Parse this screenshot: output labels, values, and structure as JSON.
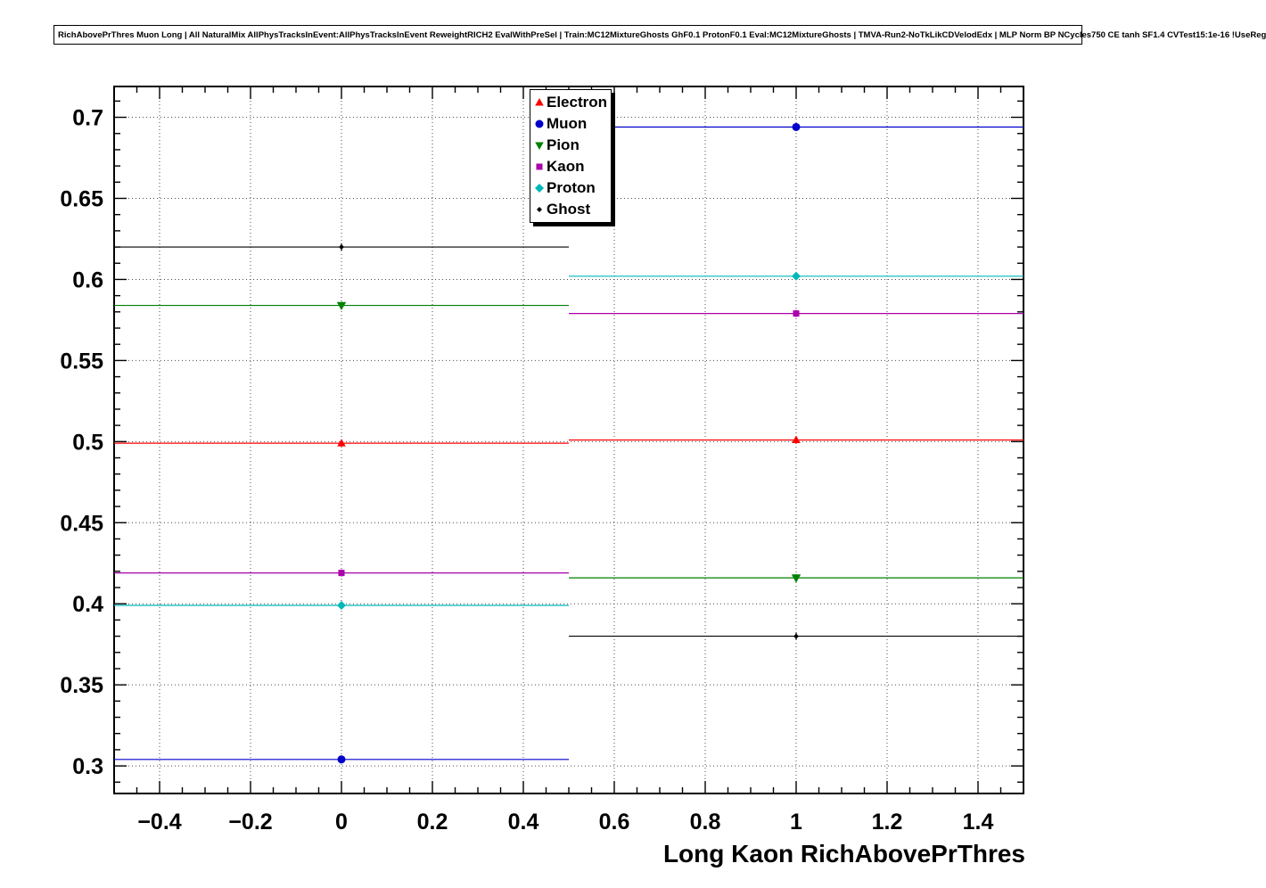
{
  "window": {
    "title_pave": "RichAbovePrThres Muon Long | All NaturalMix AllPhysTracksInEvent:AllPhysTracksInEvent ReweightRICH2 EvalWithPreSel | Train:MC12MixtureGhosts GhF0.1 ProtonF0.1 Eval:MC12MixtureGhosts | TMVA-Run2-NoTkLikCDVelodEdx | MLP Norm BP NCycles750 CE tanh SF1.4 CVTest15:1e-16 !UseReg"
  },
  "chart_data": {
    "type": "scatter",
    "title": "RichAbovePrThres Muon Long | All NaturalMix AllPhysTracksInEvent:AllPhysTracksInEvent ReweightRICH2 EvalWithPreSel | Train:MC12MixtureGhosts GhF0.1 ProtonF0.1 Eval:MC12MixtureGhosts | TMVA-Run2-NoTkLikCDVelodEdx | MLP Norm BP NCycles750 CE tanh SF1.4 CVTest15:1e-16 !UseReg",
    "xlabel": "Long Kaon RichAbovePrThres",
    "ylabel": "",
    "xlim": [
      -0.5,
      1.5
    ],
    "ylim": [
      0.283,
      0.719
    ],
    "grid": true,
    "legend_position": "top-center",
    "x_ticks": [
      -0.4,
      -0.2,
      0,
      0.2,
      0.4,
      0.6,
      0.8,
      1,
      1.2,
      1.4
    ],
    "x_tick_labels": [
      "−0.4",
      "−0.2",
      "0",
      "0.2",
      "0.4",
      "0.6",
      "0.8",
      "1",
      "1.2",
      "1.4"
    ],
    "x_minor_step": 0.05,
    "y_ticks": [
      0.3,
      0.35,
      0.4,
      0.45,
      0.5,
      0.55,
      0.6,
      0.65,
      0.7
    ],
    "y_tick_labels": [
      "0.3",
      "0.35",
      "0.4",
      "0.45",
      "0.5",
      "0.55",
      "0.6",
      "0.65",
      "0.7"
    ],
    "y_minor_step": 0.01,
    "series": [
      {
        "name": "Electron",
        "color": "#ff0000",
        "marker": "triangle-up",
        "marker_size": 5,
        "points": [
          {
            "x": 0,
            "xlow": -0.5,
            "xhigh": 0.5,
            "y": 0.499
          },
          {
            "x": 1,
            "xlow": 0.5,
            "xhigh": 1.5,
            "y": 0.501
          }
        ]
      },
      {
        "name": "Muon",
        "color": "#0000cc",
        "marker": "circle",
        "marker_size": 5,
        "points": [
          {
            "x": 0,
            "xlow": -0.5,
            "xhigh": 0.5,
            "y": 0.304
          },
          {
            "x": 1,
            "xlow": 0.5,
            "xhigh": 1.5,
            "y": 0.694
          }
        ]
      },
      {
        "name": "Pion",
        "color": "#008000",
        "marker": "triangle-down",
        "marker_size": 5.5,
        "points": [
          {
            "x": 0,
            "xlow": -0.5,
            "xhigh": 0.5,
            "y": 0.584
          },
          {
            "x": 1,
            "xlow": 0.5,
            "xhigh": 1.5,
            "y": 0.416
          }
        ]
      },
      {
        "name": "Kaon",
        "color": "#aa00aa",
        "marker": "square",
        "marker_size": 4.5,
        "points": [
          {
            "x": 0,
            "xlow": -0.5,
            "xhigh": 0.5,
            "y": 0.419
          },
          {
            "x": 1,
            "xlow": 0.5,
            "xhigh": 1.5,
            "y": 0.579
          }
        ]
      },
      {
        "name": "Proton",
        "color": "#00b8b8",
        "marker": "diamond",
        "marker_size": 5,
        "points": [
          {
            "x": 0,
            "xlow": -0.5,
            "xhigh": 0.5,
            "y": 0.399
          },
          {
            "x": 1,
            "xlow": 0.5,
            "xhigh": 1.5,
            "y": 0.602
          }
        ]
      },
      {
        "name": "Ghost",
        "color": "#000000",
        "marker": "diamond",
        "marker_size": 3,
        "points": [
          {
            "x": 0,
            "xlow": -0.5,
            "xhigh": 0.5,
            "y": 0.62
          },
          {
            "x": 1,
            "xlow": 0.5,
            "xhigh": 1.5,
            "y": 0.38
          }
        ]
      }
    ]
  }
}
